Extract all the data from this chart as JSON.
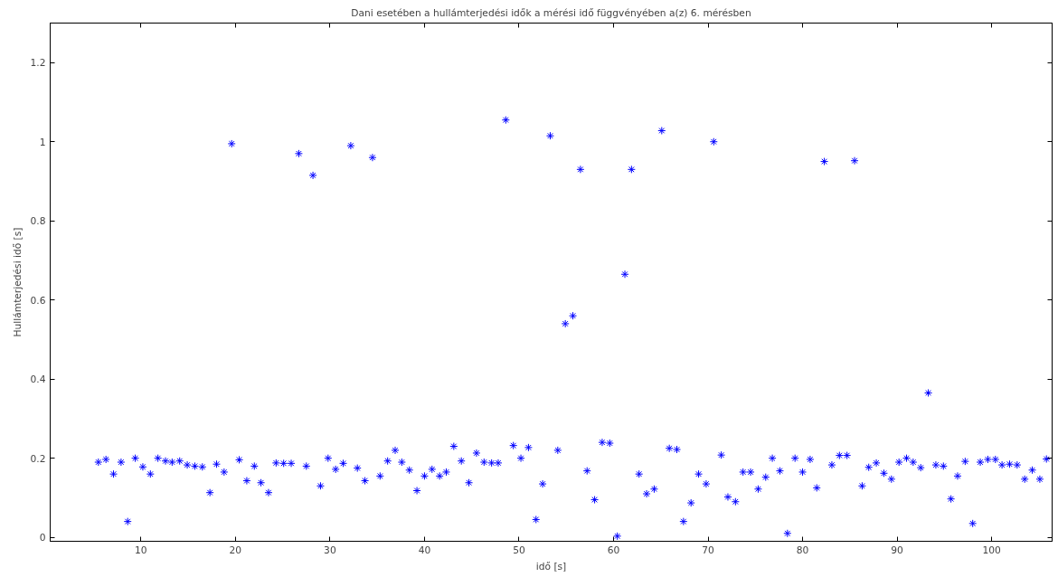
{
  "chart_data": {
    "type": "scatter",
    "title": "Dani esetében a hullámterjedési idők a mérési idő függvényében a(z) 6. mérésben",
    "xlabel": "idő [s]",
    "ylabel": "Hullámterjedési idő [s]",
    "x": [
      5.5,
      6.3,
      7.1,
      7.9,
      8.6,
      9.4,
      10.2,
      11.0,
      11.8,
      12.6,
      13.3,
      14.1,
      14.9,
      15.7,
      16.5,
      17.3,
      18.0,
      18.8,
      19.6,
      20.4,
      21.2,
      22.0,
      22.7,
      23.5,
      24.3,
      25.1,
      25.9,
      26.7,
      27.5,
      28.2,
      29.0,
      29.8,
      30.6,
      31.4,
      32.2,
      32.9,
      33.7,
      34.5,
      35.3,
      36.1,
      36.9,
      37.6,
      38.4,
      39.2,
      40.0,
      40.8,
      41.6,
      42.3,
      43.1,
      43.9,
      44.7,
      45.5,
      46.3,
      47.1,
      47.8,
      48.6,
      49.4,
      50.2,
      51.0,
      51.8,
      52.5,
      53.3,
      54.1,
      54.9,
      55.7,
      56.5,
      57.2,
      58.0,
      58.8,
      59.6,
      60.4,
      61.2,
      61.9,
      62.7,
      63.5,
      64.3,
      65.1,
      65.9,
      66.7,
      67.4,
      68.2,
      69.0,
      69.8,
      70.6,
      71.4,
      72.1,
      72.9,
      73.7,
      74.5,
      75.3,
      76.1,
      76.8,
      77.6,
      78.4,
      79.2,
      80.0,
      80.8,
      81.5,
      82.3,
      83.1,
      83.9,
      84.7,
      85.5,
      86.3,
      87.0,
      87.8,
      88.6,
      89.4,
      90.2,
      91.0,
      91.7,
      92.5,
      93.3,
      94.1,
      94.9,
      95.7,
      96.4,
      97.2,
      98.0,
      98.8,
      99.6,
      100.4,
      101.1,
      101.9,
      102.7,
      103.5,
      104.3,
      105.1,
      105.8
    ],
    "series": [
      {
        "color": "#0000ff",
        "values": [
          0.19,
          0.197,
          0.16,
          0.19,
          0.04,
          0.2,
          0.178,
          0.16,
          0.2,
          0.193,
          0.19,
          0.193,
          0.183,
          0.18,
          0.178,
          0.113,
          0.185,
          0.165,
          0.995,
          0.196,
          0.143,
          0.18,
          0.138,
          0.113,
          0.188,
          0.187,
          0.187,
          0.97,
          0.18,
          0.915,
          0.13,
          0.2,
          0.172,
          0.187,
          0.99,
          0.175,
          0.143,
          0.96,
          0.155,
          0.193,
          0.22,
          0.19,
          0.17,
          0.118,
          0.155,
          0.172,
          0.155,
          0.165,
          0.23,
          0.193,
          0.138,
          0.213,
          0.19,
          0.188,
          0.188,
          1.055,
          0.232,
          0.2,
          0.227,
          0.045,
          0.135,
          1.015,
          0.22,
          0.54,
          0.56,
          0.93,
          0.168,
          0.095,
          0.24,
          0.238,
          0.003,
          0.665,
          0.93,
          0.16,
          0.11,
          0.122,
          1.028,
          0.225,
          0.222,
          0.04,
          0.087,
          0.16,
          0.135,
          1.0,
          0.208,
          0.102,
          0.09,
          0.165,
          0.165,
          0.122,
          0.152,
          0.2,
          0.168,
          0.01,
          0.2,
          0.165,
          0.197,
          0.125,
          0.95,
          0.183,
          0.207,
          0.207,
          0.952,
          0.13,
          0.177,
          0.188,
          0.162,
          0.147,
          0.19,
          0.2,
          0.19,
          0.176,
          0.365,
          0.183,
          0.18,
          0.097,
          0.155,
          0.192,
          0.035,
          0.19,
          0.197,
          0.197,
          0.183,
          0.185,
          0.183,
          0.147,
          0.17,
          0.147,
          0.198
        ]
      }
    ],
    "xlim": [
      0.4,
      106.4
    ],
    "ylim": [
      -0.01,
      1.3
    ],
    "xticks": [
      10,
      20,
      30,
      40,
      50,
      60,
      70,
      80,
      90,
      100
    ],
    "yticks": [
      0,
      0.2,
      0.4,
      0.6,
      0.8,
      1,
      1.2
    ],
    "grid": false,
    "marker": "cross"
  }
}
